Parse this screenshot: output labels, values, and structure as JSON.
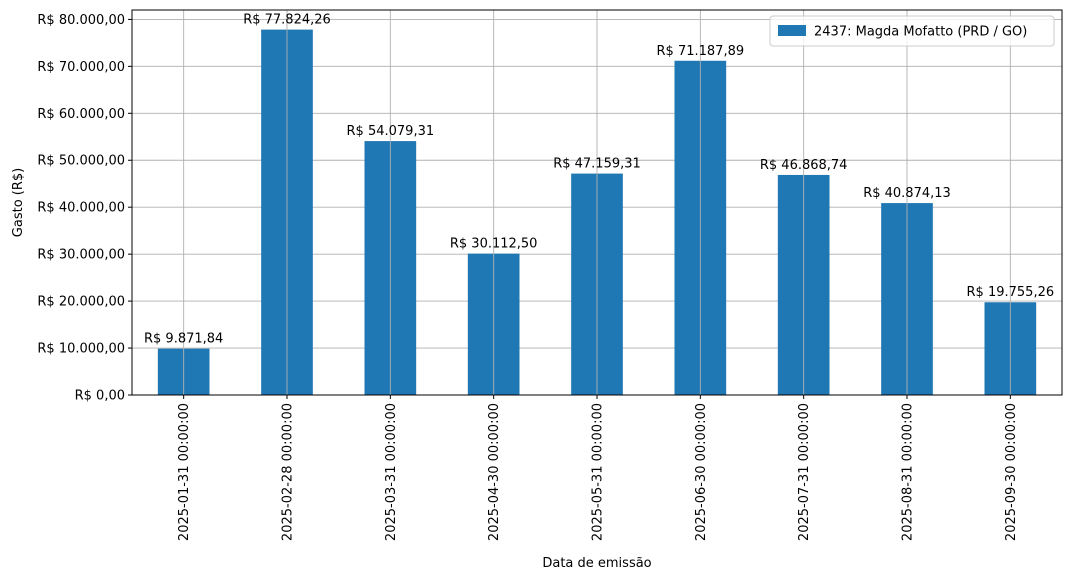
{
  "chart_data": {
    "type": "bar",
    "categories": [
      "2025-01-31 00:00:00",
      "2025-02-28 00:00:00",
      "2025-03-31 00:00:00",
      "2025-04-30 00:00:00",
      "2025-05-31 00:00:00",
      "2025-06-30 00:00:00",
      "2025-07-31 00:00:00",
      "2025-08-31 00:00:00",
      "2025-09-30 00:00:00"
    ],
    "series": [
      {
        "name": "2437: Magda Mofatto (PRD / GO)",
        "values": [
          9871.84,
          77824.26,
          54079.31,
          30112.5,
          47159.31,
          71187.89,
          46868.74,
          40874.13,
          19755.26
        ],
        "labels": [
          "R$ 9.871,84",
          "R$ 77.824,26",
          "R$ 54.079,31",
          "R$ 30.112,50",
          "R$ 47.159,31",
          "R$ 71.187,89",
          "R$ 46.868,74",
          "R$ 40.874,13",
          "R$ 19.755,26"
        ],
        "color": "#1f77b4"
      }
    ],
    "xlabel": "Data de emissão",
    "ylabel": "Gasto (R$)",
    "ylim": [
      0,
      82000
    ],
    "yticks": [
      0,
      10000,
      20000,
      30000,
      40000,
      50000,
      60000,
      70000,
      80000
    ],
    "ytick_labels": [
      "R$ 0,00",
      "R$ 10.000,00",
      "R$ 20.000,00",
      "R$ 30.000,00",
      "R$ 40.000,00",
      "R$ 50.000,00",
      "R$ 60.000,00",
      "R$ 70.000,00",
      "R$ 80.000,00"
    ],
    "grid": true,
    "legend_position": "top-right"
  }
}
